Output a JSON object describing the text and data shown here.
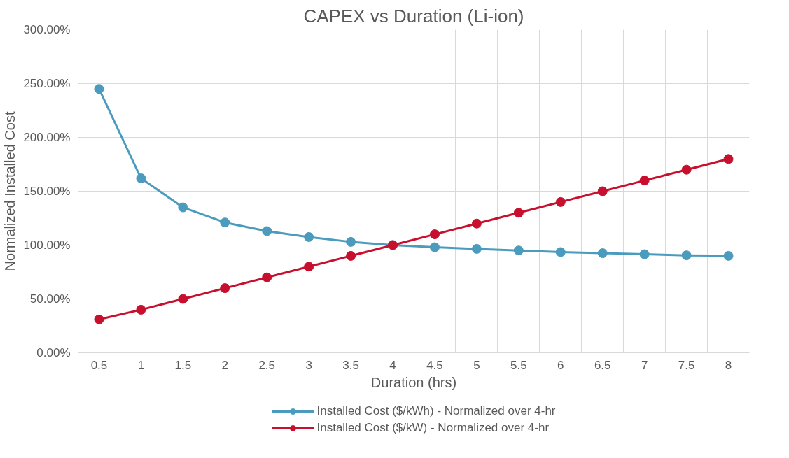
{
  "chart_data": {
    "type": "line",
    "title": "CAPEX vs Duration (Li-ion)",
    "xlabel": "Duration (hrs)",
    "ylabel": "Normalized Installed Cost",
    "categories": [
      "0.5",
      "1",
      "1.5",
      "2",
      "2.5",
      "3",
      "3.5",
      "4",
      "4.5",
      "5",
      "5.5",
      "6",
      "6.5",
      "7",
      "7.5",
      "8"
    ],
    "series": [
      {
        "name": "Installed Cost ($/kWh) - Normalized over 4-hr",
        "color": "#4a9bbd",
        "values": [
          245,
          162,
          135,
          121,
          113,
          107.5,
          103,
          100,
          98,
          96.5,
          95,
          93.5,
          92.5,
          91.5,
          90.5,
          90
        ]
      },
      {
        "name": "Installed Cost ($/kW) - Normalized over 4-hr",
        "color": "#c8102e",
        "values": [
          31,
          40,
          50,
          60,
          70,
          80,
          90,
          100,
          110,
          120,
          130,
          140,
          150,
          160,
          170,
          180
        ]
      }
    ],
    "ylim": [
      0,
      300
    ],
    "yticks": [
      {
        "value": 0,
        "label": "0.00%"
      },
      {
        "value": 50,
        "label": "50.00%"
      },
      {
        "value": 100,
        "label": "100.00%"
      },
      {
        "value": 150,
        "label": "150.00%"
      },
      {
        "value": 200,
        "label": "200.00%"
      },
      {
        "value": 250,
        "label": "250.00%"
      },
      {
        "value": 300,
        "label": "300.00%"
      }
    ],
    "grid": true,
    "legend": "bottom",
    "marker": "circle",
    "line_style": "solid"
  }
}
